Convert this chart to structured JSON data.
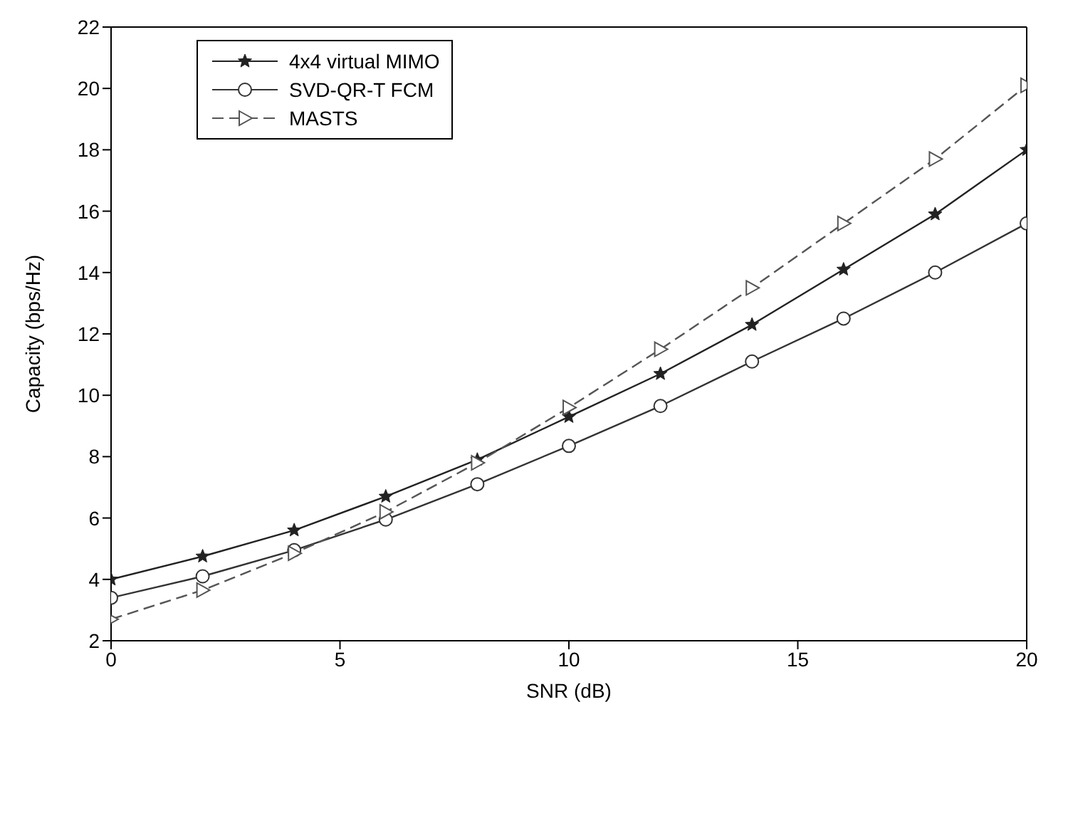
{
  "chart_data": {
    "type": "line",
    "xlabel": "SNR (dB)",
    "ylabel": "Capacity (bps/Hz)",
    "x": [
      0,
      2,
      4,
      6,
      8,
      10,
      12,
      14,
      16,
      18,
      20
    ],
    "xlim": [
      0,
      20
    ],
    "xticks": [
      0,
      5,
      10,
      15,
      20
    ],
    "ylim": [
      2,
      22
    ],
    "yticks": [
      2,
      4,
      6,
      8,
      10,
      12,
      14,
      16,
      18,
      20,
      22
    ],
    "legend": "top left",
    "series": [
      {
        "name": "4x4 virtual MIMO",
        "color": "#222222",
        "marker": "star",
        "line_style": "solid",
        "values": [
          4.0,
          4.75,
          5.6,
          6.7,
          7.9,
          9.3,
          10.7,
          12.3,
          14.1,
          15.9,
          18.0
        ]
      },
      {
        "name": "SVD-QR-T FCM",
        "color": "#333333",
        "marker": "circle",
        "line_style": "solid",
        "values": [
          3.4,
          4.1,
          4.95,
          5.95,
          7.1,
          8.35,
          9.65,
          11.1,
          12.5,
          14.0,
          15.6
        ]
      },
      {
        "name": "MASTS",
        "color": "#555555",
        "marker": "triangle",
        "line_style": "dashed",
        "values": [
          2.7,
          3.65,
          4.85,
          6.2,
          7.8,
          9.6,
          11.5,
          13.5,
          15.6,
          17.7,
          20.1
        ]
      }
    ]
  }
}
